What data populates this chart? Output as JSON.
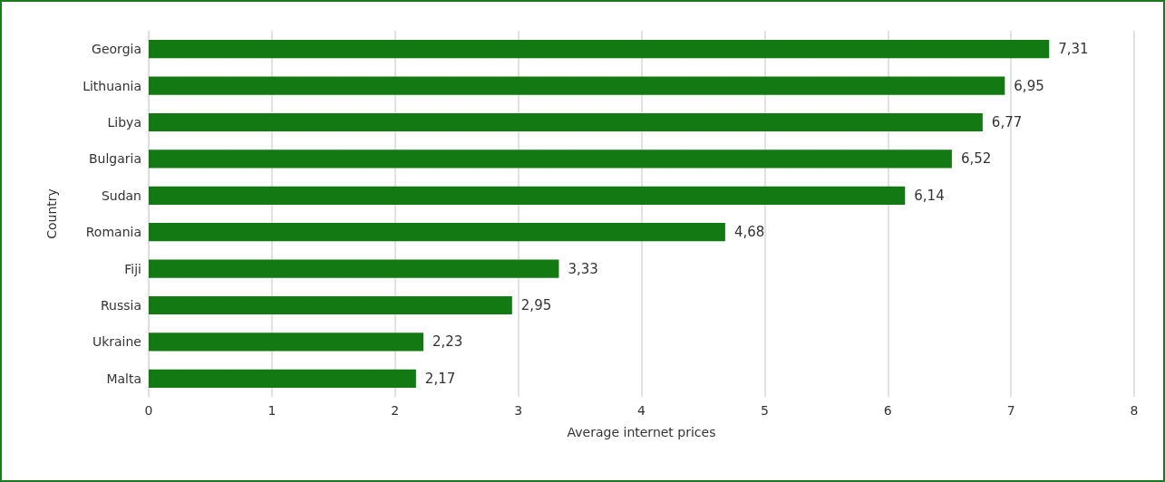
{
  "chart_data": {
    "type": "bar",
    "orientation": "horizontal",
    "xlabel": "Average internet prices",
    "ylabel": "Country",
    "categories": [
      "Georgia",
      "Lithuania",
      "Libya",
      "Bulgaria",
      "Sudan",
      "Romania",
      "Fiji",
      "Russia",
      "Ukraine",
      "Malta"
    ],
    "values": [
      7.31,
      6.95,
      6.77,
      6.52,
      6.14,
      4.68,
      3.33,
      2.95,
      2.23,
      2.17
    ],
    "value_labels": [
      "7,31",
      "6,95",
      "6,77",
      "6,52",
      "6,14",
      "4,68",
      "3,33",
      "2,95",
      "2,23",
      "2,17"
    ],
    "color": "#137a13",
    "xlim": [
      0,
      8
    ],
    "xticks": [
      0,
      1,
      2,
      3,
      4,
      5,
      6,
      7,
      8
    ],
    "grid": "x"
  }
}
